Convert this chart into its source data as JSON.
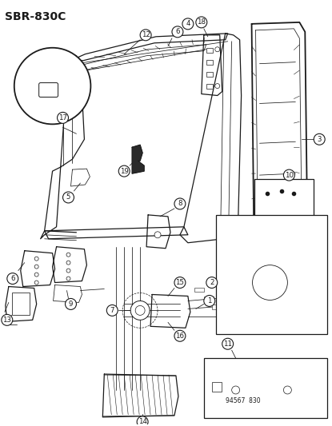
{
  "title": "SBR-830C",
  "bg": "#ffffff",
  "lc": "#1a1a1a",
  "fig_w": 4.15,
  "fig_h": 5.33,
  "dpi": 100,
  "watermark": "94567  830"
}
